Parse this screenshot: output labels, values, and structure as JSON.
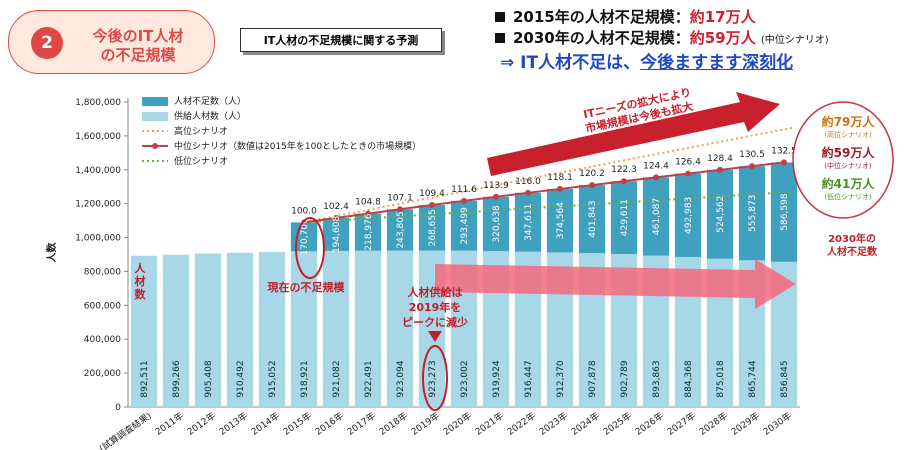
{
  "badge": {
    "number": "2",
    "line1": "今後のIT人材",
    "line2": "の不足規模"
  },
  "subtitle": "IT人材の不足規模に関する予測",
  "headline": {
    "line1_prefix": "2015年の人材不足規模：",
    "line1_value": "約17万人",
    "line2_prefix": "2030年の人材不足規模：",
    "line2_value": "約59万人",
    "line2_note": "(中位シナリオ)",
    "line3_prefix": "⇒ IT人材不足は、",
    "line3_emph": "今後ますます深刻化"
  },
  "chart_data": {
    "type": "bar",
    "stacked": true,
    "ylabel": "人数",
    "ylim": [
      0,
      1800000
    ],
    "yticks": [
      "0",
      "200,000",
      "400,000",
      "600,000",
      "800,000",
      "1,000,000",
      "1,200,000",
      "1,400,000",
      "1,600,000",
      "1,800,000"
    ],
    "categories": [
      "(試算調査結果)",
      "2011年",
      "2012年",
      "2013年",
      "2014年",
      "2015年",
      "2016年",
      "2017年",
      "2018年",
      "2019年",
      "2020年",
      "2021年",
      "2022年",
      "2023年",
      "2024年",
      "2025年",
      "2026年",
      "2027年",
      "2028年",
      "2029年",
      "2030年"
    ],
    "series": [
      {
        "name": "供給人材数（人）",
        "color": "#a8d8e8",
        "values": [
          892511,
          899266,
          905408,
          910492,
          915052,
          918921,
          921082,
          922491,
          923094,
          923273,
          923002,
          919924,
          916447,
          912370,
          907878,
          902789,
          893863,
          884368,
          875018,
          865744,
          856845
        ],
        "labels": [
          "892,511",
          "899,266",
          "905,408",
          "910,492",
          "915,052",
          "918,921",
          "921,082",
          "922,491",
          "923,094",
          "923,273",
          "923,002",
          "919,924",
          "916,447",
          "912,370",
          "907,878",
          "902,789",
          "893,863",
          "884,368",
          "875,018",
          "865,744",
          "856,845"
        ]
      },
      {
        "name": "人材不足数（人）",
        "color": "#3fa0c0",
        "values": [
          null,
          null,
          null,
          null,
          null,
          170700,
          194608,
          218976,
          243805,
          268655,
          293499,
          320638,
          347611,
          374564,
          401843,
          429611,
          461087,
          492983,
          524562,
          555873,
          586598
        ],
        "labels": [
          "",
          "",
          "",
          "",
          "",
          "170,700",
          "194,608",
          "218,976",
          "243,805",
          "268,655",
          "293,499",
          "320,638",
          "347,611",
          "374,564",
          "401,843",
          "429,611",
          "461,087",
          "492,983",
          "524,562",
          "555,873",
          "586,598"
        ]
      }
    ],
    "lines": [
      {
        "name": "高位シナリオ",
        "color": "#f0a050",
        "style": "dotted",
        "from": 1089621,
        "to": 1650000
      },
      {
        "name": "中位シナリオ（数値は2015年を100としたときの市場規模）",
        "color": "#c0404a",
        "style": "solid-marker",
        "index_labels": [
          "",
          "",
          "",
          "",
          "",
          "100.0",
          "102.4",
          "104.8",
          "107.1",
          "109.4",
          "111.6",
          "113.9",
          "116.0",
          "118.1",
          "120.2",
          "122.3",
          "124.4",
          "126.4",
          "128.4",
          "130.5",
          "132.5"
        ]
      },
      {
        "name": "低位シナリオ",
        "color": "#70b030",
        "style": "dotted",
        "from": 1089621,
        "to": 1270000
      }
    ],
    "legend_position": "top-left"
  },
  "annotations": {
    "bars_label": "人材数",
    "current_shortage": "現在の不足規模",
    "peak1": "人材供給は",
    "peak2": "2019年を",
    "peak3": "ピークに減少",
    "arrow1": "ITニーズの拡大により",
    "arrow2": "市場規模は今後も拡大",
    "high_value": "約79万人",
    "high_note": "(高位シナリオ)",
    "mid_value": "約59万人",
    "mid_note": "(中位シナリオ)",
    "low_value": "約41万人",
    "low_note": "(低位シナリオ)",
    "shortage2030_1": "2030年の",
    "shortage2030_2": "人材不足数"
  }
}
